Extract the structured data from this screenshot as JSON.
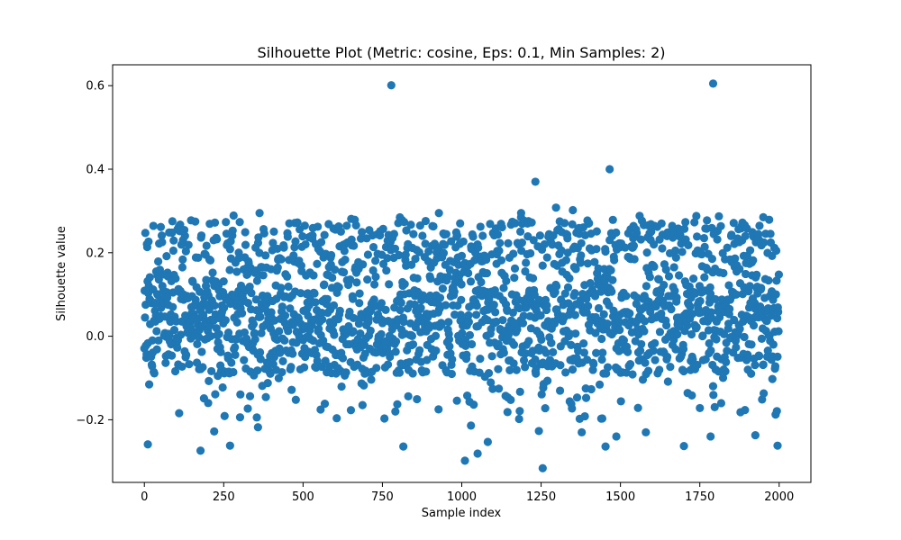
{
  "chart_data": {
    "type": "scatter",
    "title": "Silhouette Plot (Metric: cosine, Eps: 0.1, Min Samples: 2)",
    "xlabel": "Sample index",
    "ylabel": "Silhouette value",
    "xlim": [
      -100,
      2100
    ],
    "ylim": [
      -0.35,
      0.65
    ],
    "xticks": [
      0,
      250,
      500,
      750,
      1000,
      1250,
      1500,
      1750,
      2000
    ],
    "yticks": [
      -0.2,
      0.0,
      0.2,
      0.4,
      0.6
    ],
    "xtick_labels": [
      "0",
      "250",
      "500",
      "750",
      "1000",
      "1250",
      "1500",
      "1750",
      "2000"
    ],
    "ytick_labels": [
      "−0.2",
      "0.0",
      "0.2",
      "0.4",
      "0.6"
    ],
    "grid": false,
    "legend": "none",
    "marker_color": "#1f77b4",
    "point_count": 2000,
    "bulk_range": [
      -0.2,
      0.29
    ],
    "series": [
      {
        "points": [
          [
            778,
            0.601
          ],
          [
            1792,
            0.605
          ],
          [
            1466,
            0.4
          ],
          [
            1232,
            0.37
          ],
          [
            1297,
            0.308
          ],
          [
            1350,
            0.302
          ],
          [
            928,
            0.295
          ],
          [
            1187,
            0.295
          ],
          [
            363,
            0.295
          ],
          [
            1950,
            0.285
          ],
          [
            11,
            -0.259
          ],
          [
            177,
            -0.274
          ],
          [
            270,
            -0.262
          ],
          [
            816,
            -0.264
          ],
          [
            1010,
            -0.298
          ],
          [
            1050,
            -0.281
          ],
          [
            1255,
            -0.316
          ],
          [
            1453,
            -0.264
          ],
          [
            1700,
            -0.263
          ],
          [
            1995,
            -0.262
          ],
          [
            1243,
            -0.227
          ],
          [
            1378,
            -0.23
          ],
          [
            1487,
            -0.24
          ],
          [
            1784,
            -0.24
          ],
          [
            1925,
            -0.237
          ],
          [
            1580,
            -0.23
          ],
          [
            220,
            -0.228
          ],
          [
            1082,
            -0.253
          ],
          [
            1029,
            -0.214
          ],
          [
            358,
            -0.218
          ]
        ]
      }
    ]
  }
}
